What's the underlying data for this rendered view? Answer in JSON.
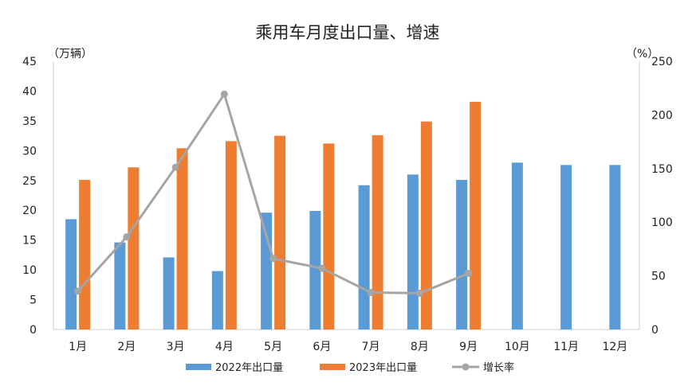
{
  "chart_data": {
    "type": "bar+line",
    "title": "乘用车月度出口量、增速",
    "left_axis": {
      "unit_label": "（万辆）",
      "min": 0,
      "max": 45,
      "step": 5,
      "ticks": [
        "0",
        "5",
        "10",
        "15",
        "20",
        "25",
        "30",
        "35",
        "40",
        "45"
      ]
    },
    "right_axis": {
      "unit_label": "（%）",
      "min": 0,
      "max": 250,
      "step": 50,
      "ticks": [
        "0",
        "50",
        "100",
        "150",
        "200",
        "250"
      ]
    },
    "categories": [
      "1月",
      "2月",
      "3月",
      "4月",
      "5月",
      "6月",
      "7月",
      "8月",
      "9月",
      "10月",
      "11月",
      "12月"
    ],
    "series": [
      {
        "name": "2022年出口量",
        "type": "bar",
        "axis": "left",
        "color": "#5B9BD5",
        "values": [
          18.5,
          14.6,
          12.1,
          9.8,
          19.6,
          19.9,
          24.2,
          26.0,
          25.1,
          28.0,
          27.6,
          27.6
        ]
      },
      {
        "name": "2023年出口量",
        "type": "bar",
        "axis": "left",
        "color": "#ED7D31",
        "values": [
          25.1,
          27.2,
          30.4,
          31.6,
          32.5,
          31.2,
          32.6,
          34.9,
          38.2,
          null,
          null,
          null
        ]
      },
      {
        "name": "增长率",
        "type": "line",
        "axis": "right",
        "color": "#A5A5A5",
        "values": [
          35.7,
          86.3,
          151.2,
          219.4,
          66.1,
          57.0,
          34.5,
          33.8,
          52.3,
          null,
          null,
          null
        ]
      }
    ],
    "legend": {
      "position": "bottom",
      "labels": [
        "2022年出口量",
        "2023年出口量",
        "增长率"
      ]
    }
  }
}
